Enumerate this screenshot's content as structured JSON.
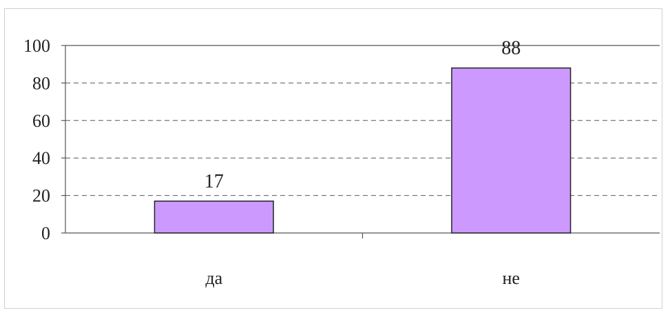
{
  "chart_data": {
    "type": "bar",
    "categories": [
      "да",
      "не"
    ],
    "values": [
      17,
      88
    ],
    "data_labels": [
      "17",
      "88"
    ],
    "title": "",
    "xlabel": "",
    "ylabel": "",
    "ylim": [
      0,
      100
    ],
    "yticks": [
      0,
      20,
      40,
      60,
      80,
      100
    ],
    "grid": true,
    "legend": "none",
    "bar_color": "#cc99ff"
  }
}
